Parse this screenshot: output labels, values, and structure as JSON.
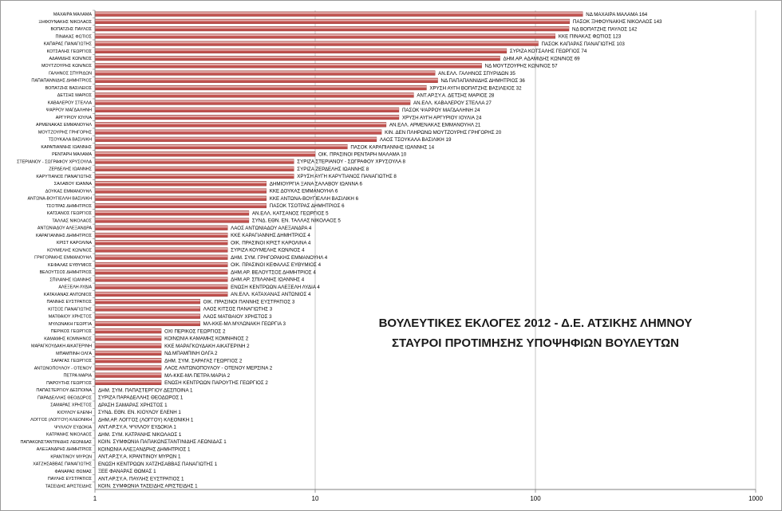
{
  "chart_data": {
    "type": "bar",
    "orientation": "horizontal",
    "title": "ΒΟΥΛΕΥΤΙΚΕΣ ΕΚΛΟΓΕΣ 2012 - Δ.Ε. ΑΤΣΙΚΗΣ ΛΗΜΝΟΥ",
    "subtitle": "ΣΤΑΥΡΟΙ ΠΡΟΤΙΜΗΣΗΣ ΥΠΟΨΗΦΙΩΝ ΒΟΥΛΕΥΤΩΝ",
    "x_scale": "log",
    "xlim": [
      1,
      1000
    ],
    "x_ticks": [
      "1",
      "10",
      "100",
      "1000"
    ],
    "grid": true,
    "bar_color": "#c0504d",
    "categories": [
      "ΜΑΧΑΙΡΑ ΜΑΛΑΜΑ",
      "ΞΗΦΟΥΝΑΚΗΣ ΝΙΚΟΛΑΟΣ",
      "ΒΟΠΑΤΖΗΣ ΠΑΥΛΟΣ",
      "ΠΙΝΑΚΑΣ ΦΩΤΙΟΣ",
      "ΚΑΠΑΡΑΣ ΠΑΝΑΓΙΩΤΗΣ",
      "ΚΟΤΣΑΛΗΣ ΓΕΩΡΓΙΟΣ",
      "ΑΔΑΜΙΔΗΣ ΚΩΝ/ΝΟΣ",
      "ΜΟΥΤΖΟΥΡΗΣ ΚΩΝ/ΝΟΣ",
      "ΓΑΛΗΝΟΣ ΣΠΥΡΙΔΩΝ",
      "ΠΑΠΑΠΑΝΝΙΔΗΣ ΔΗΜΗΤΡΙΟΣ",
      "ΒΟΠΑΤΖΗΣ ΒΑΣΙΛΕΙΟΣ",
      "ΔΕΤΣΗΣ ΜΑΡΙΟΣ",
      "ΚΑΒΑΛΕΡΟΥ ΣΤΕΛΛΑ",
      "ΨΑΡΡΟΥ ΜΑΓΔΑΛΗΝΗ",
      "ΑΡΓΥΡΙΟΥ ΙΟΥΛΙΑ",
      "ΑΡΜΕΝΑΚΑΣ ΕΜΜΑΝΟΥΗΛ",
      "ΜΟΥΤΖΟΥΡΗΣ ΓΡΗΓΟΡΗΣ",
      "ΤΣΟΥΚΑΛΑ ΒΑΣΙΛΙΚΗ",
      "ΚΑΡΑΠΙΑΝΝΗΣ ΙΩΑΝΝΗΣ",
      "ΡΕΝΤΑΡΗ ΜΑΛΑΜΑ",
      "ΣΤΕΡΙΑΝΟΥ - ΣΩΓΡΑΦΟΥ ΧΡΥΣΟΥΛΑ",
      "ΖΕΡΔΕΛΗΣ ΙΩΑΝΝΗΣ",
      "ΚΑΡΥΤΙΑΝΟΣ ΠΑΝΑΓΙΩΤΗΣ",
      "ΣΑΛΑΒΟΥ ΙΩΑΝΝΑ",
      "ΔΟΥΚΑΣ ΕΜΜΑΝΟΥΗΛ",
      "ΑΝΤΩΝΑ-ΒΟΥΓΙΕΛΛΗ ΒΑΣΙΛΙΚΗ",
      "ΤΣΟΤΡΑΣ ΔΗΜΗΤΡΙΟΣ",
      "ΚΑΤΣΑΝΟΣ ΓΕΩΡΓΙΟΣ",
      "ΤΑΛΛΑΣ ΝΙΚΟΛΑΟΣ",
      "ΑΝΤΩΝΙΑΔΟΥ ΑΛΕΞΑΝΔΡΑ",
      "ΚΑΡΑΓΙΑΝΝΗΣ ΔΗΜΗΤΡΙΟΣ",
      "ΚΡΙΣΤ ΚΑΡΟΛΙΝΑ",
      "ΚΟΥΜΕΛΗΣ ΚΩΝ/ΝΟΣ",
      "ΓΡΗΓΟΡΑΚΗΣ ΕΜΜΑΝΟΥΗΛ",
      "ΚΕΦΑΛΑΣ ΕΥΘΥΜΙΟΣ",
      "ΒΕΛΟΥΤΣΟΣ ΔΗΜΗΤΡΙΟΣ",
      "ΣΠΙΛΑΝΗΣ ΙΩΑΝΝΗΣ",
      "ΑΛΕΞΕΛΗ ΛΥΔΙΑ",
      "ΚΑΤΑΧΑΝΑΣ ΑΝΤΩΝΙΟΣ",
      "ΠΑΝΝΗΣ ΕΥΣΤΡΑΤΙΟΣ",
      "ΚΙΤΣΟΣ ΠΑΝΑΓΙΩΤΗΣ",
      "ΜΑΤΘΑΙΟΥ ΧΡΗΣΤΟΣ",
      "ΜΥΛΩΝΑΚΗ ΓΕΩΡΓΙΑ",
      "ΠΕΡΙΚΟΣ ΓΕΩΡΓΙΟΣ",
      "ΚΑΜΑΜΗΣ ΚΟΜΝΗΝΟΣ",
      "ΜΑΡΑΓΚΟΥΔΑΚΗ ΑΙΚΑΤΕΡΙΝΗ",
      "ΜΠΑΜΠΙΝΗ ΟΛΓΑ",
      "ΣΑΡΑΓΑΣ ΓΕΩΡΓΙΟΣ",
      "ΑΝΤΩΝΟΠΟΥΛΟΥ - ΟΤΕΝΟΥ",
      "ΠΕΤΡΑ ΜΑΡΙΑ",
      "ΠΑΡΟΥΤΗΣ ΓΕΩΡΓΙΟΣ",
      "ΠΑΠΑΣΤΕΡΓΙΟΥ ΔΕΣΠΟΙΝΑ",
      "ΠΑΡΑΔΕΛΛΗΣ ΘΕΟΔΩΡΟΣ",
      "ΣΑΜΑΡΑΣ ΧΡΗΣΤΟΣ",
      "ΚΙΟΥΛΟΥ ΕΛΕΝΗ",
      "ΛΟΓΓΟΣ (ΛΟΓΓΟΥ) ΚΛΕΟΝΙΚΗ",
      "ΨΥΛΛΟΥ ΕΥΔΟΚΙΑ",
      "ΚΑΤΡΑΝΗΣ ΝΙΚΟΛΑΟΣ",
      "ΠΑΠΑΚΩΝΣΤΑΝΤΙΝΙΔΗΣ ΛΕΩΝΙΔΑΣ",
      "ΑΛΕΞΑΝΔΡΗΣ ΔΗΜΗΤΡΙΟΣ",
      "ΚΡΑΝΤΙΝΟΥ ΜΥΡΩΝ",
      "ΧΑΤΖΗΣΑΒΒΑΣ ΠΑΝΑΓΙΩΤΗΣ",
      "ΦΑΝΑΡΑΣ ΘΩΜΑΣ",
      "ΠΑΥΛΗΣ ΕΥΣΤΡΑΤΙΟΣ",
      "ΤΑΣΕΙΔΗΣ ΑΡΙΣΤΕΙΔΗΣ"
    ],
    "values": [
      164,
      143,
      142,
      123,
      103,
      74,
      69,
      57,
      35,
      36,
      32,
      28,
      27,
      24,
      24,
      21,
      20,
      19,
      14,
      10,
      8,
      8,
      8,
      6,
      6,
      6,
      6,
      5,
      5,
      4,
      4,
      4,
      4,
      4,
      4,
      4,
      4,
      4,
      4,
      3,
      3,
      3,
      3,
      2,
      2,
      2,
      2,
      2,
      2,
      2,
      2,
      1,
      1,
      1,
      1,
      1,
      1,
      1,
      1,
      1,
      1,
      1,
      1,
      1,
      1
    ],
    "data_labels": [
      "ΝΔ ΜΑΧΑΙΡΑ ΜΑΛΑΜΑ 164",
      "ΠΑΣΟΚ ΞΗΦΟΥΝΑΚΗΣ ΝΙΚΟΛΑΟΣ 143",
      "ΝΔ ΒΟΠΑΤΖΗΣ ΠΑΥΛΟΣ 142",
      "ΚΚΕ ΠΙΝΑΚΑΣ ΦΩΤΙΟΣ 123",
      "ΠΑΣΟΚ ΚΑΠΑΡΑΣ ΠΑΝΑΓΙΩΤΗΣ 103",
      "ΣΥΡΙΖΑ ΚΟΤΣΑΛΗΣ ΓΕΩΡΓΙΟΣ 74",
      "ΔΗΜ.ΑΡ. ΑΔΑΜΙΔΗΣ ΚΩΝ/ΝΟΣ 69",
      "ΝΔ ΜΟΥΤΖΟΥΡΗΣ ΚΩΝ/ΝΟΣ 57",
      "ΑΝ.ΕΛΛ. ΓΑΛΗΝΟΣ ΣΠΥΡΙΔΩΝ 35",
      "ΝΔ ΠΑΠΑΠΑΝΝΙΔΗΣ ΔΗΜΗΤΡΙΟΣ 36",
      "ΧΡΥΣΗ ΑΥΓΗ ΒΟΠΑΤΖΗΣ ΒΑΣΙΛΕΙΟΣ 32",
      "ΑΝΤ.ΑΡ.ΣΥ.Α. ΔΕΤΣΗΣ ΜΑΡΙΟΣ 28",
      "ΑΝ.ΕΛΛ. ΚΑΒΑΛΕΡΟΥ ΣΤΕΛΛΑ 27",
      "ΠΑΣΟΚ ΨΑΡΡΟΥ ΜΑΓΔΑΛΗΝΗ 24",
      "ΧΡΥΣΗ ΑΥΓΗ ΑΡΓΥΡΙΟΥ ΙΟΥΛΙΑ 24",
      "ΑΝ.ΕΛΛ. ΑΡΜΕΝΑΚΑΣ ΕΜΜΑΝΟΥΗΛ 21",
      "ΚΙΝ. ΔΕΝ ΠΛΗΡΩΝΩ ΜΟΥΤΖΟΥΡΗΣ ΓΡΗΓΟΡΗΣ 20",
      "ΛΑΟΣ ΤΣΟΥΚΑΛΑ ΒΑΣΙΛΙΚΗ 19",
      "ΠΑΣΟΚ ΚΑΡΑΠΙΑΝΝΗΣ ΙΩΑΝΝΗΣ 14",
      "ΟΙΚ. ΠΡΑΣΙΝΟΙ ΡΕΝΤΑΡΗ ΜΑΛΑΜΑ 10",
      "ΣΥΡΙΖΑ ΣΤΕΡΙΑΝΟΥ - ΣΩΓΡΑΦΟΥ ΧΡΥΣΟΥΛΑ 8",
      "ΣΥΡΙΖΑ ΖΕΡΔΕΛΗΣ ΙΩΑΝΝΗΣ 8",
      "ΧΡΥΣΗ ΑΥΓΗ ΚΑΡΥΤΙΑΝΟΣ ΠΑΝΑΓΙΩΤΗΣ 8",
      "ΔΗΜΙΟΥΡΓΙΑ ΞΑΝΑ ΣΑΛΑΒΟΥ ΙΩΑΝΝΑ 6",
      "ΚΚΕ ΔΟΥΚΑΣ ΕΜΜΑΝΟΥΗΛ 6",
      "ΚΚΕ ΑΝΤΩΝΑ-ΒΟΥΓΙΕΛΛΗ ΒΑΣΙΛΙΚΗ 6",
      "ΠΑΣΟΚ ΤΣΟΤΡΑΣ ΔΗΜΗΤΡΙΟΣ 6",
      "ΑΝ.ΕΛΛ. ΚΑΤΣΑΝΟΣ ΓΕΩΡΓΙΟΣ 5",
      "ΣΥΝΔ. ΕΘΝ. ΕΝ. ΤΑΛΛΑΣ ΝΙΚΟΛΑΟΣ 5",
      "ΛΑΟΣ ΑΝΤΩΝΙΑΔΟΥ ΑΛΕΞΑΝΔΡΑ 4",
      "ΚΚΕ ΚΑΡΑΓΙΑΝΝΗΣ ΔΗΜΗΤΡΙΟΣ 4",
      "ΟΙΚ. ΠΡΑΣΙΝΟΙ ΚΡΙΣΤ ΚΑΡΟΛΙΝΑ 4",
      "ΣΥΡΙΖΑ ΚΟΥΜΕΛΗΣ ΚΩΝ/ΝΟΣ 4",
      "ΔΗΜ. ΣΥΜ. ΓΡΗΓΟΡΑΚΗΣ ΕΜΜΑΝΟΥΗΛ 4",
      "ΟΙΚ. ΠΡΑΣΙΝΟΙ ΚΕΦΑΛΑΣ ΕΥΘΥΜΙΟΣ 4",
      "ΔΗΜ.ΑΡ. ΒΕΛΟΥΤΣΟΣ ΔΗΜΗΤΡΙΟΣ 4",
      "ΔΗΜ.ΑΡ. ΣΠΙΛΑΝΗΣ ΙΩΑΝΝΗΣ 4",
      "ΕΝΩΣΗ ΚΕΝΤΡΩΩΝ ΑΛΕΞΕΛΗ ΛΥΔΙΑ 4",
      "ΑΝ.ΕΛΛ. ΚΑΤΑΧΑΝΑΣ ΑΝΤΩΝΙΟΣ 4",
      "ΟΙΚ. ΠΡΑΣΙΝΟΙ ΠΑΝΝΗΣ ΕΥΣΤΡΑΤΙΟΣ 3",
      "ΛΑΟΣ ΚΙΤΣΟΣ ΠΑΝΑΓΙΩΤΗΣ 3",
      "ΛΑΟΣ ΜΑΤΘΑΙΟΥ ΧΡΗΣΤΟΣ 3",
      "ΜΛ-ΚΚΕ-ΜΛ ΜΥΛΩΝΑΚΗ ΓΕΩΡΓΙΑ 3",
      "ΟΧΙ ΠΕΡΙΚΟΣ ΓΕΩΡΓΙΟΣ 2",
      "ΚΟΙΝΩΝΙΑ ΚΑΜΑΜΗΣ ΚΟΜΝΗΝΟΣ 2",
      "ΚΚΕ ΜΑΡΑΓΚΟΥΔΑΚΗ ΑΙΚΑΤΕΡΙΝΗ 2",
      "ΝΔ ΜΠΑΜΠΙΝΗ ΟΛΓΑ 2",
      "ΔΗΜ. ΣΥΜ. ΣΑΡΑΓΑΣ ΓΕΩΡΓΙΟΣ 2",
      "ΛΑΟΣ ΑΝΤΩΝΟΠΟΥΛΟΥ - ΟΤΕΝΟΥ ΜΕΡΣΙΝΑ 2",
      "ΜΛ-ΚΚΕ-ΜΛ ΠΕΤΡΑ ΜΑΡΙΑ 2",
      "ΕΝΩΣΗ ΚΕΝΤΡΩΩΝ ΠΑΡΟΥΤΗΣ ΓΕΩΡΓΙΟΣ 2",
      "ΔΗΜ. ΣΥΜ. ΠΑΠΑΣΤΕΡΓΙΟΥ ΔΕΣΠΟΙΝΑ 1",
      "ΣΥΡΙΖΑ ΠΑΡΑΔΕΛΛΗΣ ΘΕΟΔΩΡΟΣ 1",
      "ΔΡΑΣΗ ΣΑΜΑΡΑΣ ΧΡΗΣΤΟΣ 1",
      "ΣΥΝΔ. ΕΘΝ. ΕΝ. ΚΙΟΥΛΟΥ ΕΛΕΝΗ 1",
      "ΔΗΜ.ΑΡ. ΛΟΓΓΟΣ (ΛΟΓΓΟΥ) ΚΛΕΟΝΙΚΗ 1",
      "ΑΝΤ.ΑΡ.ΣΥ.Α. ΨΥΛΛΟΥ ΕΥΔΟΚΙΑ 1",
      "ΔΗΜ. ΣΥΜ. ΚΑΤΡΑΝΗΣ ΝΙΚΟΛΑΟΣ 1",
      "ΚΟΙΝ. ΣΥΜΦΩΝΙΑ ΠΑΠΑΚΩΝΣΤΑΝΤΙΝΙΔΗΣ ΛΕΩΝΙΔΑΣ 1",
      "ΚΟΙΝΩΝΙΑ ΑΛΕΞΑΝΔΡΗΣ ΔΗΜΗΤΡΙΟΣ 1",
      "ΑΝΤ.ΑΡ.ΣΥ.Α. ΚΡΑΝΤΙΝΟΥ ΜΥΡΩΝ 1",
      "ΕΝΩΣΗ ΚΕΝΤΡΩΩΝ ΧΑΤΖΗΣΑΒΒΑΣ ΠΑΝΑΓΙΩΤΗΣ 1",
      "ΞΕΕ ΦΑΝΑΡΑΣ ΘΩΜΑΣ 1",
      "ΑΝΤ.ΑΡ.ΣΥ.Α. ΠΑΥΛΗΣ ΕΥΣΤΡΑΤΙΟΣ 1",
      "ΚΟΙΝ. ΣΥΜΦΩΝΙΑ ΤΑΣΕΙΔΗΣ ΑΡΙΣΤΕΙΔΗΣ 1"
    ]
  }
}
